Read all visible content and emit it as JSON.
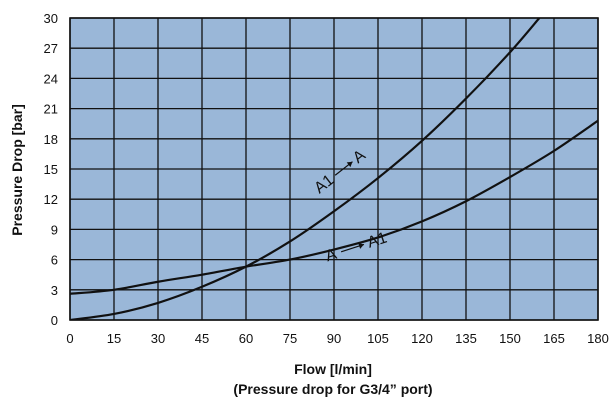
{
  "chart_data": {
    "type": "line",
    "title": "",
    "xlabel": "Flow  [l/min]",
    "subtitle": "(Pressure drop for G3/4” port)",
    "ylabel": "Pressure Drop [bar]",
    "xlim": [
      0,
      180
    ],
    "ylim": [
      0,
      30
    ],
    "xticks": [
      "0",
      "15",
      "30",
      "45",
      "60",
      "75",
      "90",
      "105",
      "120",
      "135",
      "150",
      "165",
      "180"
    ],
    "yticks": [
      "0",
      "3",
      "6",
      "9",
      "12",
      "15",
      "18",
      "21",
      "24",
      "27",
      "30"
    ],
    "grid": true,
    "background_color": "#9ab7d8",
    "grid_color": "#111111",
    "series": [
      {
        "name": "A1 → A",
        "x": [
          0,
          15,
          30,
          45,
          60,
          75,
          90,
          105,
          120,
          135,
          150,
          160
        ],
        "y": [
          0,
          0.6,
          1.7,
          3.3,
          5.3,
          7.8,
          10.8,
          14.1,
          17.8,
          22.0,
          26.6,
          30.0
        ]
      },
      {
        "name": "A → A1",
        "x": [
          0,
          15,
          30,
          45,
          60,
          75,
          90,
          105,
          120,
          135,
          150,
          165,
          180
        ],
        "y": [
          2.6,
          3.0,
          3.8,
          4.5,
          5.3,
          6.0,
          7.0,
          8.2,
          9.8,
          11.8,
          14.2,
          16.8,
          19.8
        ]
      }
    ],
    "annotations": [
      {
        "text": "A1",
        "arrow_to": "A",
        "x": 100,
        "y": 15.5
      },
      {
        "text": "A",
        "arrow_to": "A1",
        "x": 113,
        "y": 7.0
      }
    ]
  }
}
